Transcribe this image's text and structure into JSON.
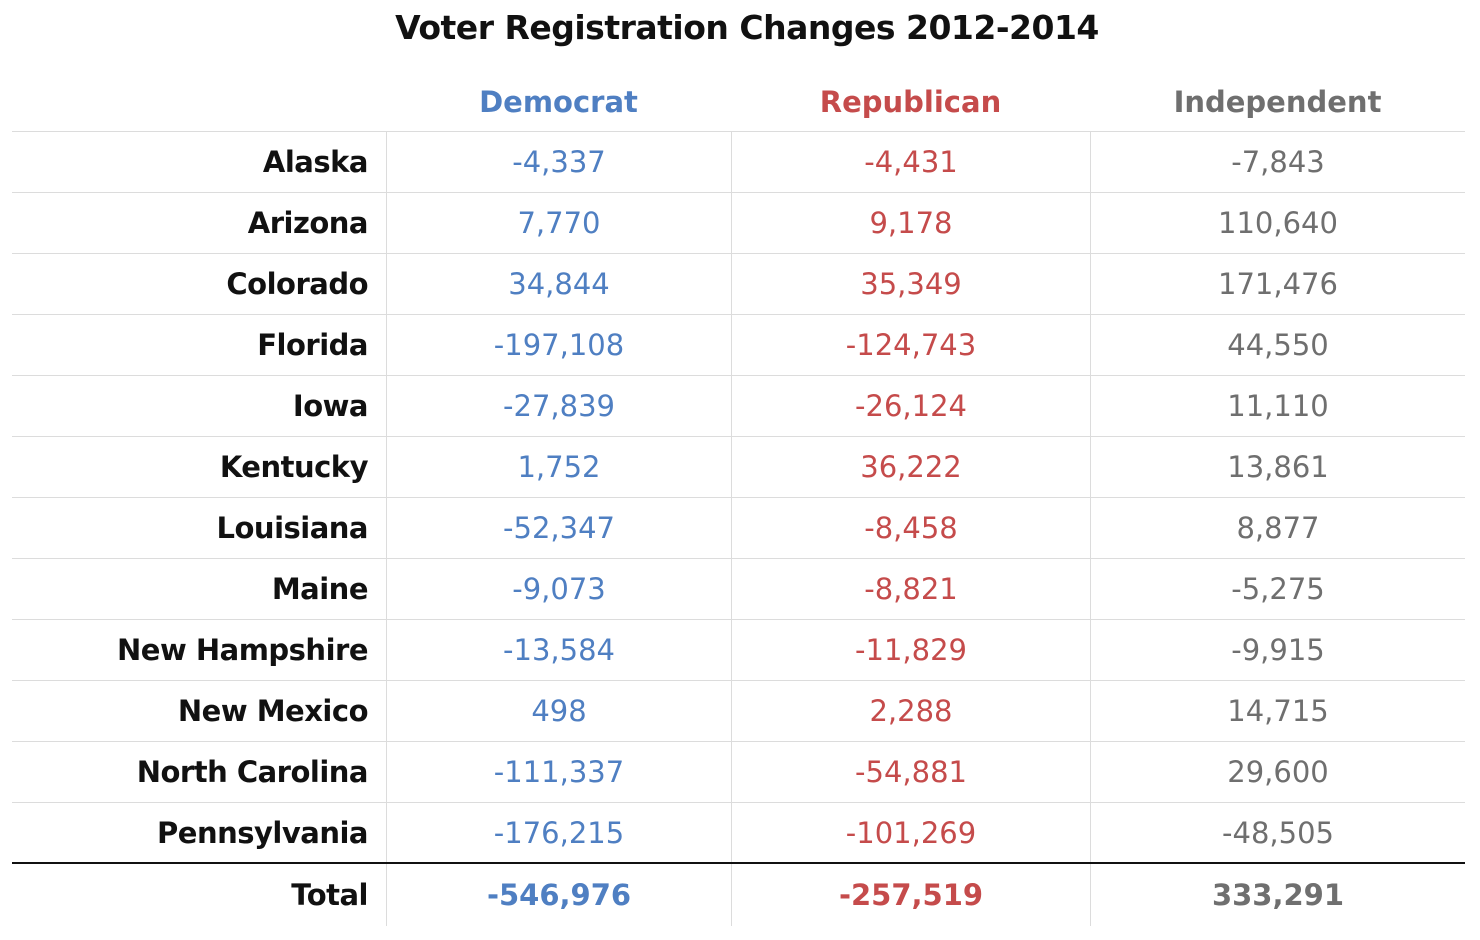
{
  "chart_data": {
    "type": "table",
    "title": "Voter Registration Changes 2012-2014",
    "columns": [
      "Democrat",
      "Republican",
      "Independent"
    ],
    "colors": {
      "Democrat": "#4f7fc2",
      "Republican": "#c54b4b",
      "Independent": "#6f6f6f"
    },
    "rows": [
      {
        "state": "Alaska",
        "values": [
          "-4,337",
          "-4,431",
          "-7,843"
        ]
      },
      {
        "state": "Arizona",
        "values": [
          "7,770",
          "9,178",
          "110,640"
        ]
      },
      {
        "state": "Colorado",
        "values": [
          "34,844",
          "35,349",
          "171,476"
        ]
      },
      {
        "state": "Florida",
        "values": [
          "-197,108",
          "-124,743",
          "44,550"
        ]
      },
      {
        "state": "Iowa",
        "values": [
          "-27,839",
          "-26,124",
          "11,110"
        ]
      },
      {
        "state": "Kentucky",
        "values": [
          "1,752",
          "36,222",
          "13,861"
        ]
      },
      {
        "state": "Louisiana",
        "values": [
          "-52,347",
          "-8,458",
          "8,877"
        ]
      },
      {
        "state": "Maine",
        "values": [
          "-9,073",
          "-8,821",
          "-5,275"
        ]
      },
      {
        "state": "New Hampshire",
        "values": [
          "-13,584",
          "-11,829",
          "-9,915"
        ]
      },
      {
        "state": "New Mexico",
        "values": [
          "498",
          "2,288",
          "14,715"
        ]
      },
      {
        "state": "North Carolina",
        "values": [
          "-111,337",
          "-54,881",
          "29,600"
        ]
      },
      {
        "state": "Pennsylvania",
        "values": [
          "-176,215",
          "-101,269",
          "-48,505"
        ]
      }
    ],
    "total": {
      "label": "Total",
      "values": [
        "-546,976",
        "-257,519",
        "333,291"
      ]
    }
  }
}
